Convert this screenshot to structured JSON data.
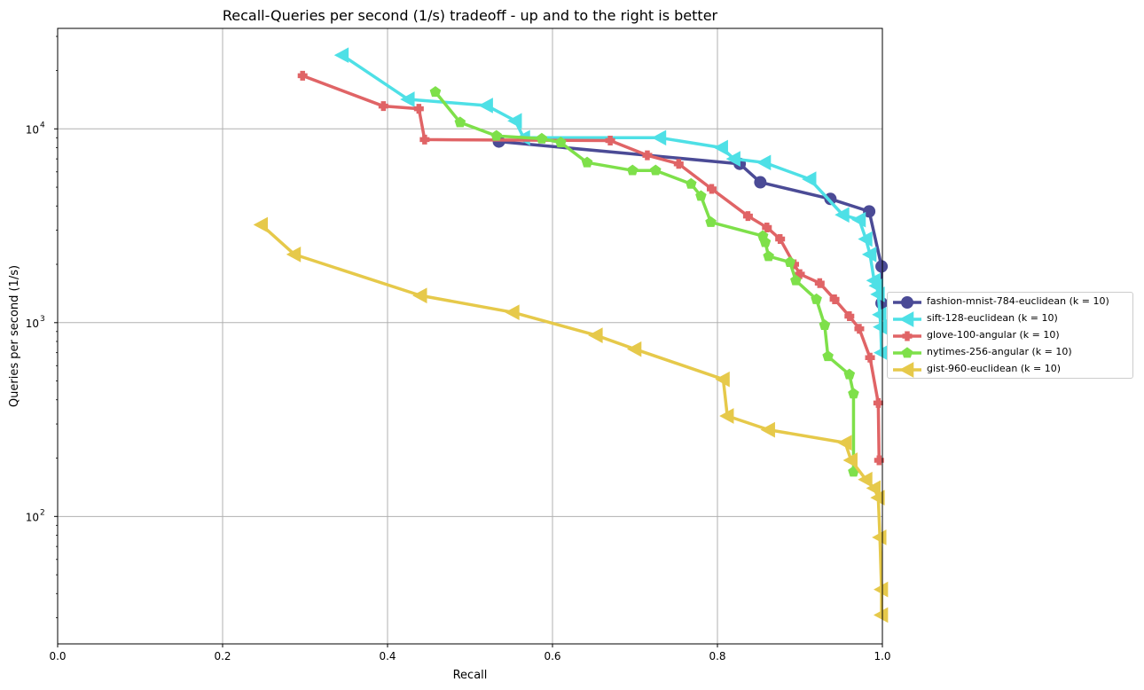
{
  "chart_data": {
    "type": "line",
    "title": "Recall-Queries per second (1/s) tradeoff - up and to the right is better",
    "xlabel": "Recall",
    "ylabel": "Queries per second (1/s)",
    "xlim": [
      0.0,
      1.0
    ],
    "ylim": [
      22,
      33000
    ],
    "yscale": "log",
    "grid": true,
    "legend_position": "center-right-outside",
    "x_ticks": [
      "0.0",
      "0.2",
      "0.4",
      "0.6",
      "0.8",
      "1.0"
    ],
    "y_ticks": [
      {
        "value": 100,
        "label": "10",
        "exp": "2"
      },
      {
        "value": 1000,
        "label": "10",
        "exp": "3"
      },
      {
        "value": 10000,
        "label": "10",
        "exp": "4"
      }
    ],
    "series": [
      {
        "name": "fashion-mnist-784-euclidean (k = 10)",
        "color": "#4b4b96",
        "marker": "circle",
        "points": [
          [
            0.535,
            8600
          ],
          [
            0.827,
            6600
          ],
          [
            0.852,
            5300
          ],
          [
            0.937,
            4350
          ],
          [
            0.984,
            3750
          ],
          [
            0.999,
            1950
          ],
          [
            0.999,
            1260
          ]
        ]
      },
      {
        "name": "sift-128-euclidean (k = 10)",
        "color": "#4ee0e6",
        "marker": "triangle-left",
        "points": [
          [
            0.345,
            24000
          ],
          [
            0.425,
            14200
          ],
          [
            0.52,
            13200
          ],
          [
            0.555,
            11000
          ],
          [
            0.565,
            9000
          ],
          [
            0.73,
            9000
          ],
          [
            0.805,
            8000
          ],
          [
            0.82,
            7000
          ],
          [
            0.857,
            6700
          ],
          [
            0.912,
            5500
          ],
          [
            0.952,
            3600
          ],
          [
            0.972,
            3400
          ],
          [
            0.98,
            2700
          ],
          [
            0.985,
            2250
          ],
          [
            0.99,
            1650
          ],
          [
            0.993,
            1550
          ],
          [
            0.995,
            1400
          ],
          [
            0.997,
            1100
          ],
          [
            0.998,
            950
          ],
          [
            0.999,
            700
          ]
        ]
      },
      {
        "name": "glove-100-angular (k = 10)",
        "color": "#e06466",
        "marker": "plus",
        "points": [
          [
            0.297,
            18800
          ],
          [
            0.395,
            13100
          ],
          [
            0.438,
            12700
          ],
          [
            0.445,
            8800
          ],
          [
            0.67,
            8700
          ],
          [
            0.715,
            7300
          ],
          [
            0.753,
            6600
          ],
          [
            0.793,
            4900
          ],
          [
            0.837,
            3550
          ],
          [
            0.86,
            3100
          ],
          [
            0.876,
            2700
          ],
          [
            0.893,
            2000
          ],
          [
            0.9,
            1780
          ],
          [
            0.924,
            1600
          ],
          [
            0.942,
            1320
          ],
          [
            0.96,
            1080
          ],
          [
            0.972,
            930
          ],
          [
            0.985,
            660
          ],
          [
            0.995,
            385
          ],
          [
            0.996,
            195
          ]
        ]
      },
      {
        "name": "nytimes-256-angular (k = 10)",
        "color": "#7ee04a",
        "marker": "pentagon",
        "points": [
          [
            0.458,
            15500
          ],
          [
            0.488,
            10800
          ],
          [
            0.532,
            9200
          ],
          [
            0.587,
            8900
          ],
          [
            0.61,
            8500
          ],
          [
            0.642,
            6700
          ],
          [
            0.697,
            6100
          ],
          [
            0.725,
            6100
          ],
          [
            0.768,
            5200
          ],
          [
            0.78,
            4500
          ],
          [
            0.792,
            3300
          ],
          [
            0.855,
            2800
          ],
          [
            0.858,
            2600
          ],
          [
            0.862,
            2200
          ],
          [
            0.888,
            2050
          ],
          [
            0.895,
            1650
          ],
          [
            0.92,
            1320
          ],
          [
            0.93,
            970
          ],
          [
            0.934,
            670
          ],
          [
            0.96,
            540
          ],
          [
            0.965,
            430
          ],
          [
            0.965,
            170
          ]
        ]
      },
      {
        "name": "gist-960-euclidean (k = 10)",
        "color": "#e6c94a",
        "marker": "triangle-left",
        "points": [
          [
            0.247,
            3200
          ],
          [
            0.287,
            2250
          ],
          [
            0.44,
            1380
          ],
          [
            0.552,
            1130
          ],
          [
            0.653,
            860
          ],
          [
            0.7,
            730
          ],
          [
            0.807,
            510
          ],
          [
            0.812,
            330
          ],
          [
            0.862,
            280
          ],
          [
            0.955,
            240
          ],
          [
            0.962,
            195
          ],
          [
            0.98,
            155
          ],
          [
            0.99,
            140
          ],
          [
            0.995,
            125
          ],
          [
            0.997,
            78
          ],
          [
            0.999,
            42
          ],
          [
            0.999,
            31
          ]
        ]
      }
    ]
  }
}
